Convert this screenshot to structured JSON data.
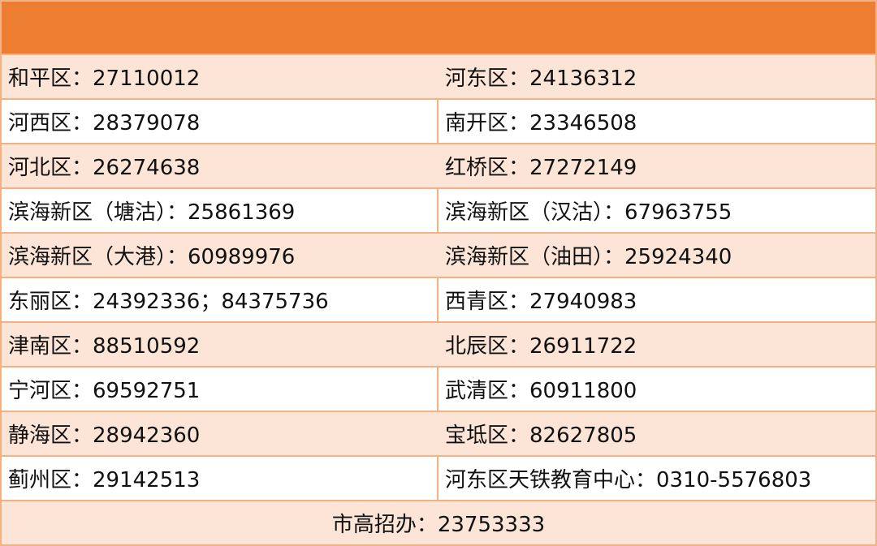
{
  "colors": {
    "header": "#ED7D31",
    "row_alt": "#FCE4D6",
    "border": "#F4B183"
  },
  "rows": [
    [
      "和平区：27110012",
      "河东区：24136312"
    ],
    [
      "河西区：28379078",
      "南开区：23346508"
    ],
    [
      "河北区：26274638",
      "红桥区：27272149"
    ],
    [
      "滨海新区（塘沽）：25861369",
      "滨海新区（汉沽）：67963755"
    ],
    [
      "滨海新区（大港）：60989976",
      "滨海新区（油田）：25924340"
    ],
    [
      "东丽区：24392336；84375736",
      "西青区：27940983"
    ],
    [
      "津南区：88510592",
      "北辰区：26911722"
    ],
    [
      "宁河区：69592751",
      "武清区：60911800"
    ],
    [
      "静海区：28942360",
      "宝坻区：82627805"
    ],
    [
      "蓟州区：29142513",
      "河东区天铁教育中心：0310-5576803"
    ]
  ],
  "footer": "市高招办：23753333"
}
